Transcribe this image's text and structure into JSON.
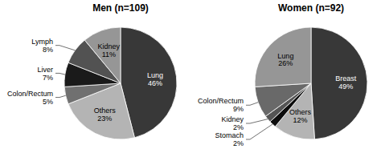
{
  "chart_data": [
    {
      "type": "pie",
      "title": "Men (n=109)",
      "categories": [
        "Lung",
        "Others",
        "Colon/Rectum",
        "Liver",
        "Lymph",
        "Kidney"
      ],
      "values": [
        46,
        23,
        5,
        7,
        8,
        11
      ],
      "value_labels": [
        "46%",
        "23%",
        "5%",
        "7%",
        "8%",
        "11%"
      ],
      "colors": [
        "#383838",
        "#b4b4b4",
        "#707070",
        "#1a1a1a",
        "#525252",
        "#969696"
      ]
    },
    {
      "type": "pie",
      "title": "Women (n=92)",
      "categories": [
        "Breast",
        "Others",
        "Stomach",
        "Kidney",
        "Colon/Rectum",
        "Lung"
      ],
      "values": [
        49,
        12,
        2,
        2,
        9,
        26
      ],
      "value_labels": [
        "49%",
        "12%",
        "2%",
        "2%",
        "9%",
        "26%"
      ],
      "colors": [
        "#383838",
        "#b4b4b4",
        "#0d0d0d",
        "#555555",
        "#696969",
        "#969696"
      ]
    }
  ]
}
